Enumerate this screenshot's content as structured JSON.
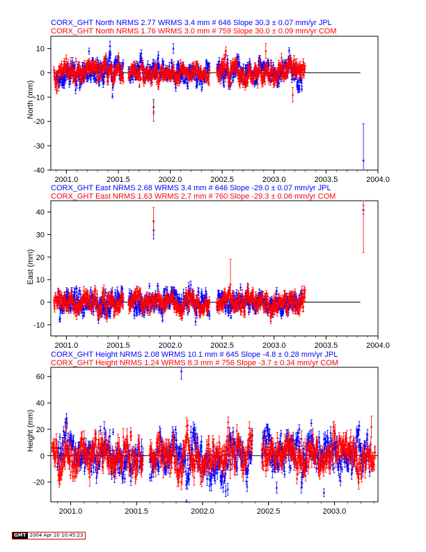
{
  "chart_data": [
    {
      "type": "scatter",
      "header_lines": [
        "CORX_GHT North NRMS 2.77 WRMS  3.4 mm # 646 Slope   30.3 ±  0.07 mm/yr JPL",
        "CORX_GHT North NRMS 1.76 WRMS  3.0 mm # 759 Slope   30.0 ±  0.09 mm/yr COM"
      ],
      "ylabel": "North (mm)",
      "xlim": [
        2000.85,
        2004.0
      ],
      "ylim": [
        -40,
        15
      ],
      "xticks": [
        2001.0,
        2001.5,
        2002.0,
        2002.5,
        2003.0,
        2003.5,
        2004.0
      ],
      "xtick_labels": [
        "2001.0",
        "2001.5",
        "2002.0",
        "2002.5",
        "2003.0",
        "2003.5",
        "2004.0"
      ],
      "yticks": [
        10,
        0,
        -10,
        -20,
        -30,
        -40
      ],
      "ytick_labels": [
        "10",
        "0",
        "-10",
        "-20",
        "-30",
        "-40"
      ],
      "zero_line": [
        2000.92,
        2003.83
      ],
      "series": [
        {
          "color": "#0000ff",
          "segments": [
            [
              2000.9,
              2001.55,
              2.8,
              1.2
            ],
            [
              2001.6,
              2002.38,
              2.5,
              1.0
            ],
            [
              2002.45,
              2003.27,
              2.5,
              1.0
            ]
          ],
          "spikes": [
            [
              2001.84,
              -14,
              3
            ],
            [
              2002.03,
              10,
              2
            ],
            [
              2001.42,
              11,
              2
            ],
            [
              2003.86,
              -36,
              15
            ]
          ]
        },
        {
          "color": "#ff0000",
          "segments": [
            [
              2000.88,
              2001.55,
              2.3,
              1.1
            ],
            [
              2001.6,
              2002.38,
              2.0,
              1.0
            ],
            [
              2002.45,
              2003.3,
              2.3,
              1.2
            ]
          ],
          "spikes": [
            [
              2001.84,
              -16,
              4
            ],
            [
              2002.92,
              9,
              3
            ],
            [
              2003.18,
              -9,
              3
            ]
          ]
        }
      ]
    },
    {
      "type": "scatter",
      "header_lines": [
        "CORX_GHT East NRMS 2.68 WRMS  3.4 mm # 646 Slope  -29.0 ±  0.07 mm/yr JPL",
        "CORX_GHT East NRMS 1.63 WRMS  2.7 mm # 760 Slope  -29.3 ±  0.06 mm/yr COM"
      ],
      "ylabel": "East (mm)",
      "xlim": [
        2000.85,
        2004.0
      ],
      "ylim": [
        -15,
        45
      ],
      "xticks": [
        2001.0,
        2001.5,
        2002.0,
        2002.5,
        2003.0,
        2003.5,
        2004.0
      ],
      "xtick_labels": [
        "2001.0",
        "2001.5",
        "2002.0",
        "2002.5",
        "2003.0",
        "2003.5",
        "2004.0"
      ],
      "yticks": [
        40,
        30,
        20,
        10,
        0,
        -10
      ],
      "ytick_labels": [
        "40",
        "30",
        "20",
        "10",
        "0",
        "-10"
      ],
      "zero_line": [
        2000.92,
        2003.83
      ],
      "series": [
        {
          "color": "#0000ff",
          "segments": [
            [
              2000.92,
              2001.55,
              3.0,
              1.2
            ],
            [
              2001.6,
              2002.38,
              3.0,
              1.2
            ],
            [
              2002.45,
              2003.27,
              2.5,
              1.2
            ]
          ],
          "spikes": [
            [
              2001.84,
              32,
              4
            ],
            [
              2003.86,
              41,
              2
            ]
          ]
        },
        {
          "color": "#ff0000",
          "segments": [
            [
              2000.88,
              2001.55,
              2.4,
              1.5
            ],
            [
              2001.6,
              2002.38,
              2.2,
              1.5
            ],
            [
              2002.45,
              2003.3,
              2.4,
              1.5
            ]
          ],
          "spikes": [
            [
              2001.84,
              36,
              6
            ],
            [
              2003.86,
              41,
              19
            ],
            [
              2002.58,
              8,
              11
            ]
          ]
        }
      ]
    },
    {
      "type": "scatter",
      "header_lines": [
        "CORX_GHT Height NRMS 2.08 WRMS 10.1 mm # 645 Slope   -4.8 ±  0.28 mm/yr JPL",
        "CORX_GHT Height NRMS 1.24 WRMS  8.3 mm # 756 Slope   -3.7 ±  0.34 mm/yr COM"
      ],
      "ylabel": "Height (mm)",
      "xlim": [
        2000.85,
        2003.33
      ],
      "ylim": [
        -35,
        67
      ],
      "xticks": [
        2001.0,
        2001.5,
        2002.0,
        2002.5,
        2003.0
      ],
      "xtick_labels": [
        "2001.0",
        "2001.5",
        "2002.0",
        "2002.5",
        "2003.0"
      ],
      "yticks": [
        60,
        40,
        20,
        0,
        -20
      ],
      "ytick_labels": [
        "60",
        "40",
        "20",
        "0",
        "-20"
      ],
      "zero_line": [
        2000.85,
        2003.33
      ],
      "series": [
        {
          "color": "#0000ff",
          "segments": [
            [
              2000.9,
              2001.55,
              9.0,
              3.5
            ],
            [
              2001.6,
              2002.38,
              9.0,
              3.5
            ],
            [
              2002.45,
              2003.27,
              8.0,
              3.5
            ]
          ],
          "spikes": [
            [
              2001.84,
              64,
              6
            ],
            [
              2002.92,
              -28,
              3
            ]
          ]
        },
        {
          "color": "#ff0000",
          "segments": [
            [
              2000.86,
              2001.55,
              7.5,
              4.5
            ],
            [
              2001.6,
              2002.38,
              7.5,
              4.5
            ],
            [
              2002.45,
              2003.31,
              7.0,
              4.5
            ]
          ],
          "spikes": [
            [
              2003.28,
              22,
              8
            ]
          ]
        }
      ]
    }
  ],
  "footer": {
    "logo": "GMT",
    "timestamp": "2004 Apr 20 10:45:23"
  }
}
